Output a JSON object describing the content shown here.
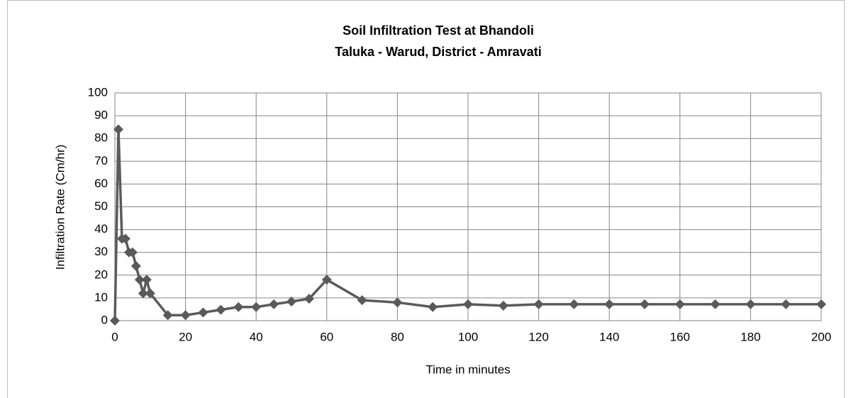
{
  "chart_data": {
    "type": "line",
    "title": "Soil Infiltration Test at Bhandoli",
    "subtitle": "Taluka - Warud, District - Amravati",
    "x_label": "Time in minutes",
    "y_label": "Infiltration Rate (Cm/hr)",
    "x": [
      0,
      1,
      2,
      3,
      4,
      5,
      6,
      7,
      8,
      9,
      10,
      15,
      20,
      25,
      30,
      35,
      40,
      45,
      50,
      55,
      60,
      70,
      80,
      90,
      100,
      110,
      120,
      130,
      140,
      150,
      160,
      170,
      180,
      190,
      200
    ],
    "values": [
      0,
      84,
      36,
      36,
      30,
      30,
      24,
      18,
      12,
      18,
      12,
      2.4,
      2.4,
      3.6,
      4.8,
      6,
      6,
      7.2,
      8.4,
      9.6,
      18,
      9,
      8,
      6,
      7.2,
      6.6,
      7.2,
      7.2,
      7.2,
      7.2,
      7.2,
      7.2,
      7.2,
      7.2,
      7.2
    ],
    "color": "#5a5a5a",
    "xlim": [
      0,
      200
    ],
    "xticks": [
      0,
      20,
      40,
      60,
      80,
      100,
      120,
      140,
      160,
      180,
      200
    ],
    "ylim": [
      0,
      100
    ],
    "yticks": [
      0,
      10,
      20,
      30,
      40,
      50,
      60,
      70,
      80,
      90,
      100
    ],
    "grid": true
  }
}
